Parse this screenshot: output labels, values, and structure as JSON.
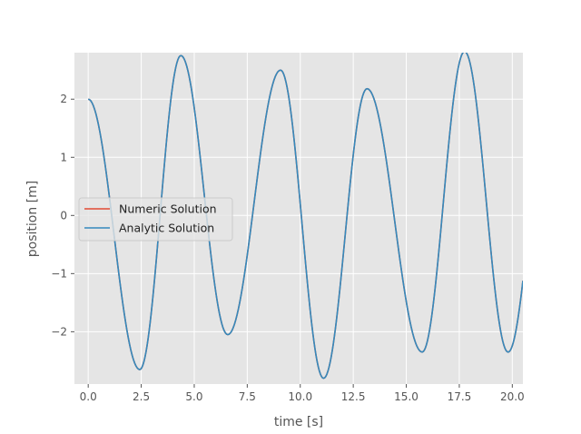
{
  "chart_data": {
    "type": "line",
    "title": "",
    "xlabel": "time [s]",
    "ylabel": "position [m]",
    "xlim": [
      -0.65,
      20.5
    ],
    "ylim": [
      -2.9,
      2.8
    ],
    "xticks": [
      0.0,
      2.5,
      5.0,
      7.5,
      10.0,
      12.5,
      15.0,
      17.5,
      20.0
    ],
    "xtick_labels": [
      "0.0",
      "2.5",
      "5.0",
      "7.5",
      "10.0",
      "12.5",
      "15.0",
      "17.5",
      "20.0"
    ],
    "yticks": [
      -2,
      -1,
      0,
      1,
      2
    ],
    "ytick_labels": [
      "−2",
      "−1",
      "0",
      "1",
      "2"
    ],
    "grid": true,
    "legend_position": "center-left",
    "series": [
      {
        "name": "Numeric Solution",
        "color": "#E24A33",
        "x": [
          0.0,
          2.43,
          4.37,
          6.58,
          9.07,
          11.1,
          13.15,
          15.75,
          17.75,
          19.8,
          20.5
        ],
        "y": [
          2.0,
          -2.65,
          2.75,
          -2.05,
          2.5,
          -2.8,
          2.18,
          -2.35,
          2.82,
          -2.35,
          -1.15
        ]
      },
      {
        "name": "Analytic Solution",
        "color": "#348ABD",
        "x": [
          0.0,
          2.43,
          4.37,
          6.58,
          9.07,
          11.1,
          13.15,
          15.75,
          17.75,
          19.8,
          20.5
        ],
        "y": [
          2.0,
          -2.65,
          2.75,
          -2.05,
          2.5,
          -2.8,
          2.18,
          -2.35,
          2.82,
          -2.35,
          -1.15
        ]
      }
    ]
  }
}
